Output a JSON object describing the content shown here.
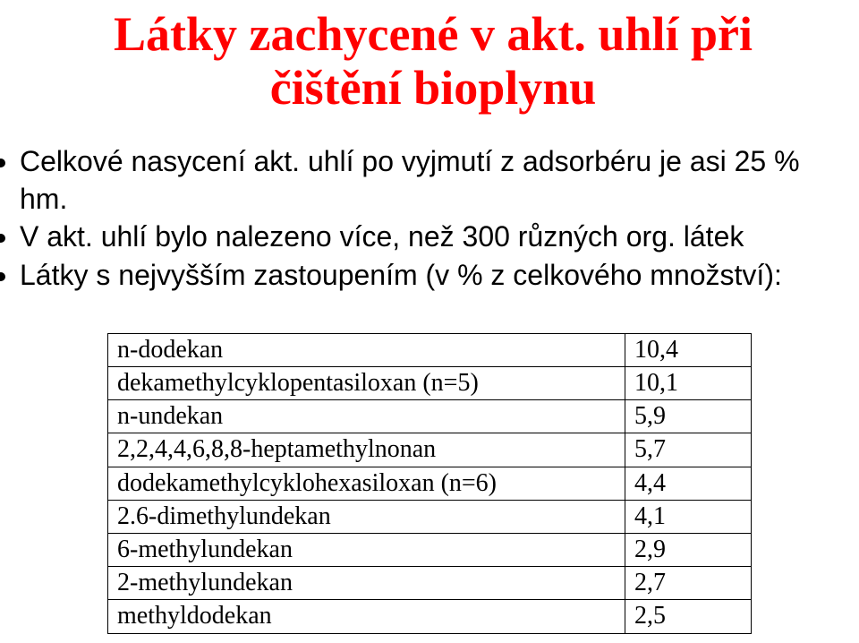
{
  "title": {
    "line1": "Látky zachycené v akt. uhlí při",
    "line2": "čištění bioplynu",
    "color": "#ff0000",
    "background": "#ffffff",
    "font_size_pt": 40,
    "font_weight": "bold"
  },
  "bullets": {
    "items": [
      "Celkové nasycení akt. uhlí po vyjmutí z adsorbéru je asi 25 % hm.",
      "V akt. uhlí bylo nalezeno více, než 300 různých org. látek",
      "Látky s nejvyšším zastoupením (v % z celkového množství):"
    ],
    "font_size_pt": 24,
    "color": "#000000"
  },
  "table": {
    "type": "table",
    "border_color": "#000000",
    "background_color": "#ffffff",
    "font_size_pt": 21,
    "columns_count": 2,
    "rows": [
      {
        "name": "n-dodekan",
        "value": "10,4"
      },
      {
        "name": "dekamethylcyklopentasiloxan (n=5)",
        "value": "10,1"
      },
      {
        "name": "n-undekan",
        "value": "5,9"
      },
      {
        "name": "2,2,4,4,6,8,8-heptamethylnonan",
        "value": "5,7"
      },
      {
        "name": "dodekamethylcyklohexasiloxan (n=6)",
        "value": "4,4"
      },
      {
        "name": "2.6-dimethylundekan",
        "value": "4,1"
      },
      {
        "name": "6-methylundekan",
        "value": "2,9"
      },
      {
        "name": "2-methylundekan",
        "value": "2,7"
      },
      {
        "name": "methyldodekan",
        "value": "2,5"
      }
    ]
  }
}
